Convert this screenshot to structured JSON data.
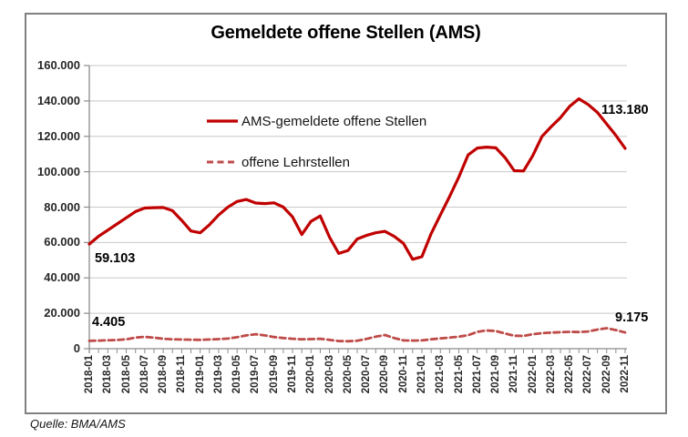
{
  "title": "Gemeldete offene Stellen (AMS)",
  "source_note": "Quelle: BMA/AMS",
  "colors": {
    "solid_line": "#C00000",
    "dashed_line": "#BE4B48",
    "gridline": "#C8C8C8",
    "axis": "#8C8C8C",
    "frame_border": "#808080",
    "text": "#000000"
  },
  "chart_data": {
    "type": "line",
    "title": "Gemeldete offene Stellen (AMS)",
    "xlabel": "",
    "ylabel": "",
    "ylim": [
      0,
      160000
    ],
    "y_tick_step": 20000,
    "y_tick_labels": [
      "160.000",
      "140.000",
      "120.000",
      "100.000",
      "80.000",
      "60.000",
      "40.000",
      "20.000",
      "0"
    ],
    "grid": true,
    "legend_position": "inside-top-left",
    "x": [
      "2018-01",
      "2018-02",
      "2018-03",
      "2018-04",
      "2018-05",
      "2018-06",
      "2018-07",
      "2018-08",
      "2018-09",
      "2018-10",
      "2018-11",
      "2018-12",
      "2019-01",
      "2019-02",
      "2019-03",
      "2019-04",
      "2019-05",
      "2019-06",
      "2019-07",
      "2019-08",
      "2019-09",
      "2019-10",
      "2019-11",
      "2019-12",
      "2020-01",
      "2020-02",
      "2020-03",
      "2020-04",
      "2020-05",
      "2020-06",
      "2020-07",
      "2020-08",
      "2020-09",
      "2020-10",
      "2020-11",
      "2020-12",
      "2021-01",
      "2021-02",
      "2021-03",
      "2021-04",
      "2021-05",
      "2021-06",
      "2021-07",
      "2021-08",
      "2021-09",
      "2021-10",
      "2021-11",
      "2021-12",
      "2022-01",
      "2022-02",
      "2022-03",
      "2022-04",
      "2022-05",
      "2022-06",
      "2022-07",
      "2022-08",
      "2022-09",
      "2022-10",
      "2022-11"
    ],
    "x_tick_labels": [
      "2018-01",
      "2018-03",
      "2018-05",
      "2018-07",
      "2018-09",
      "2018-11",
      "2019-01",
      "2019-03",
      "2019-05",
      "2019-07",
      "2019-09",
      "2019-11",
      "2020-01",
      "2020-03",
      "2020-05",
      "2020-07",
      "2020-09",
      "2020-11",
      "2021-01",
      "2021-03",
      "2021-05",
      "2021-07",
      "2021-09",
      "2021-11",
      "2022-01",
      "2022-03",
      "2022-05",
      "2022-07",
      "2022-09",
      "2022-11"
    ],
    "series": [
      {
        "name": "AMS-gemeldete offene Stellen",
        "style": "solid",
        "color": "#C00000",
        "values": [
          59103,
          63500,
          67000,
          70500,
          74000,
          77500,
          79500,
          79700,
          79800,
          78000,
          72500,
          66500,
          65500,
          70000,
          75500,
          80000,
          83200,
          84300,
          82300,
          82000,
          82400,
          80000,
          74500,
          64500,
          72000,
          75000,
          63000,
          53800,
          55500,
          62000,
          64000,
          65500,
          66300,
          63500,
          59500,
          50500,
          52000,
          65000,
          75500,
          86000,
          97000,
          109500,
          113400,
          113900,
          113500,
          108000,
          100600,
          100400,
          109000,
          120000,
          125500,
          130500,
          137000,
          141200,
          138000,
          133500,
          127000,
          120500,
          113180
        ]
      },
      {
        "name": "offene Lehrstellen",
        "style": "dashed",
        "color": "#BE4B48",
        "values": [
          4405,
          4600,
          4750,
          4900,
          5300,
          6300,
          6700,
          6200,
          5600,
          5300,
          5200,
          5100,
          5000,
          5200,
          5400,
          5700,
          6500,
          7500,
          8200,
          7500,
          6600,
          6000,
          5600,
          5300,
          5400,
          5600,
          5000,
          4300,
          4200,
          4500,
          5500,
          6800,
          7700,
          6000,
          4700,
          4600,
          4700,
          5300,
          5800,
          6300,
          6800,
          7600,
          9500,
          10300,
          10000,
          8600,
          7300,
          7200,
          8200,
          8800,
          9100,
          9300,
          9500,
          9400,
          9700,
          10800,
          11600,
          10500,
          9175
        ]
      }
    ],
    "point_labels": [
      {
        "series": "AMS-gemeldete offene Stellen",
        "x": "2018-01",
        "text": "59.103"
      },
      {
        "series": "AMS-gemeldete offene Stellen",
        "x": "2022-11",
        "text": "113.180"
      },
      {
        "series": "offene Lehrstellen",
        "x": "2018-01",
        "text": "4.405"
      },
      {
        "series": "offene Lehrstellen",
        "x": "2022-11",
        "text": "9.175"
      }
    ]
  }
}
